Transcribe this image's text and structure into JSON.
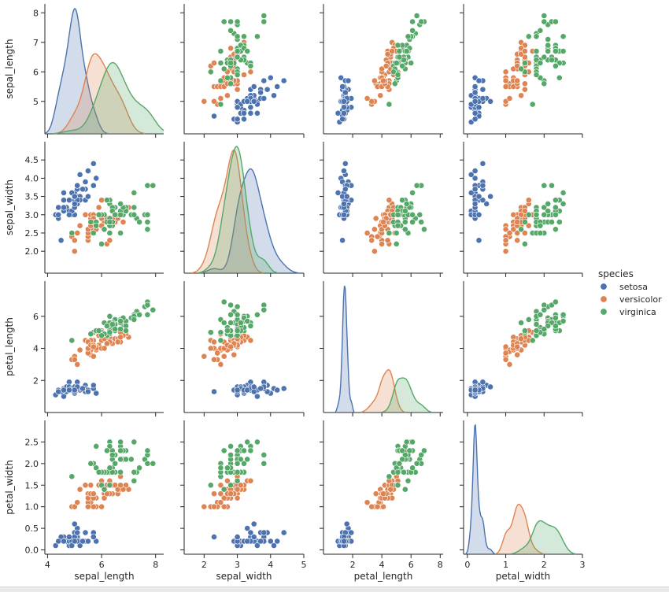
{
  "chart_data": {
    "type": "pairplot",
    "variables": [
      "sepal_length",
      "sepal_width",
      "petal_length",
      "petal_width"
    ],
    "axes": {
      "sepal_length": {
        "lim": [
          3.9,
          8.3
        ],
        "ticks": [
          "4",
          "6",
          "8"
        ],
        "row_ticks": [
          "5",
          "6",
          "7",
          "8"
        ]
      },
      "sepal_width": {
        "lim": [
          1.4,
          5.0
        ],
        "ticks": [
          "2",
          "3",
          "4",
          "5"
        ],
        "row_ticks": [
          "2.0",
          "2.5",
          "3.0",
          "3.5",
          "4.0",
          "4.5"
        ]
      },
      "petal_length": {
        "lim": [
          0.0,
          8.2
        ],
        "ticks": [
          "2",
          "4",
          "6",
          "8"
        ],
        "row_ticks": [
          "2",
          "4",
          "6"
        ]
      },
      "petal_width": {
        "lim": [
          -0.1,
          3.0
        ],
        "ticks": [
          "0",
          "1",
          "2",
          "3"
        ],
        "row_ticks": [
          "0.0",
          "0.5",
          "1.0",
          "1.5",
          "2.0",
          "2.5"
        ]
      }
    },
    "diag_kind": "kde",
    "legend": {
      "title": "species",
      "position": "right",
      "entries": [
        "setosa",
        "versicolor",
        "virginica"
      ]
    },
    "colors": {
      "setosa": "#4c72b0",
      "versicolor": "#dd8452",
      "virginica": "#55a868"
    },
    "series": [
      {
        "name": "setosa",
        "color": "#4c72b0",
        "sepal_length": [
          5.1,
          4.9,
          4.7,
          4.6,
          5.0,
          5.4,
          4.6,
          5.0,
          4.4,
          4.9,
          5.4,
          4.8,
          4.8,
          4.3,
          5.8,
          5.7,
          5.4,
          5.1,
          5.7,
          5.1,
          5.4,
          5.1,
          4.6,
          5.1,
          4.8,
          5.0,
          5.0,
          5.2,
          5.2,
          4.7,
          4.8,
          5.4,
          5.2,
          5.5,
          4.9,
          5.0,
          5.5,
          4.9,
          4.4,
          5.1,
          5.0,
          4.5,
          4.4,
          5.0,
          5.1,
          4.8,
          5.1,
          4.6,
          5.3,
          5.0
        ],
        "sepal_width": [
          3.5,
          3.0,
          3.2,
          3.1,
          3.6,
          3.9,
          3.4,
          3.4,
          2.9,
          3.1,
          3.7,
          3.4,
          3.0,
          3.0,
          4.0,
          4.4,
          3.9,
          3.5,
          3.8,
          3.8,
          3.4,
          3.7,
          3.6,
          3.3,
          3.4,
          3.0,
          3.4,
          3.5,
          3.4,
          3.2,
          3.1,
          3.4,
          4.1,
          4.2,
          3.1,
          3.2,
          3.5,
          3.6,
          3.0,
          3.4,
          3.5,
          2.3,
          3.2,
          3.5,
          3.8,
          3.0,
          3.8,
          3.2,
          3.7,
          3.3
        ],
        "petal_length": [
          1.4,
          1.4,
          1.3,
          1.5,
          1.4,
          1.7,
          1.4,
          1.5,
          1.4,
          1.5,
          1.5,
          1.6,
          1.4,
          1.1,
          1.2,
          1.5,
          1.3,
          1.4,
          1.7,
          1.5,
          1.7,
          1.5,
          1.0,
          1.7,
          1.9,
          1.6,
          1.6,
          1.5,
          1.4,
          1.6,
          1.6,
          1.5,
          1.5,
          1.4,
          1.5,
          1.2,
          1.3,
          1.4,
          1.3,
          1.5,
          1.3,
          1.3,
          1.3,
          1.6,
          1.9,
          1.4,
          1.6,
          1.4,
          1.5,
          1.4
        ],
        "petal_width": [
          0.2,
          0.2,
          0.2,
          0.2,
          0.2,
          0.4,
          0.3,
          0.2,
          0.2,
          0.1,
          0.2,
          0.2,
          0.1,
          0.1,
          0.2,
          0.4,
          0.4,
          0.3,
          0.3,
          0.3,
          0.2,
          0.4,
          0.2,
          0.5,
          0.2,
          0.2,
          0.4,
          0.2,
          0.2,
          0.2,
          0.2,
          0.4,
          0.1,
          0.2,
          0.2,
          0.2,
          0.2,
          0.1,
          0.2,
          0.2,
          0.3,
          0.3,
          0.2,
          0.6,
          0.4,
          0.3,
          0.2,
          0.2,
          0.2,
          0.2
        ]
      },
      {
        "name": "versicolor",
        "color": "#dd8452",
        "sepal_length": [
          7.0,
          6.4,
          6.9,
          5.5,
          6.5,
          5.7,
          6.3,
          4.9,
          6.6,
          5.2,
          5.0,
          5.9,
          6.0,
          6.1,
          5.6,
          6.7,
          5.6,
          5.8,
          6.2,
          5.6,
          5.9,
          6.1,
          6.3,
          6.1,
          6.4,
          6.6,
          6.8,
          6.7,
          6.0,
          5.7,
          5.5,
          5.5,
          5.8,
          6.0,
          5.4,
          6.0,
          6.7,
          6.3,
          5.6,
          5.5,
          5.5,
          6.1,
          5.8,
          5.0,
          5.6,
          5.7,
          5.7,
          6.2,
          5.1,
          5.7
        ],
        "sepal_width": [
          3.2,
          3.2,
          3.1,
          2.3,
          2.8,
          2.8,
          3.3,
          2.4,
          2.9,
          2.7,
          2.0,
          3.0,
          2.2,
          2.9,
          2.9,
          3.1,
          3.0,
          2.7,
          2.2,
          2.5,
          3.2,
          2.8,
          2.5,
          2.8,
          2.9,
          3.0,
          2.8,
          3.0,
          2.9,
          2.6,
          2.4,
          2.4,
          2.7,
          2.7,
          3.0,
          3.4,
          3.1,
          2.3,
          3.0,
          2.5,
          2.6,
          3.0,
          2.6,
          2.3,
          2.7,
          3.0,
          2.9,
          2.9,
          2.5,
          2.8
        ],
        "petal_length": [
          4.7,
          4.5,
          4.9,
          4.0,
          4.6,
          4.5,
          4.7,
          3.3,
          4.6,
          3.9,
          3.5,
          4.2,
          4.0,
          4.7,
          3.6,
          4.4,
          4.5,
          4.1,
          4.5,
          3.9,
          4.8,
          4.0,
          4.9,
          4.7,
          4.3,
          4.4,
          4.8,
          5.0,
          4.5,
          3.5,
          3.8,
          3.7,
          3.9,
          5.1,
          4.5,
          4.5,
          4.7,
          4.4,
          4.1,
          4.0,
          4.4,
          4.6,
          4.0,
          3.3,
          4.2,
          4.2,
          4.2,
          4.3,
          3.0,
          4.1
        ],
        "petal_width": [
          1.4,
          1.5,
          1.5,
          1.3,
          1.5,
          1.3,
          1.6,
          1.0,
          1.3,
          1.4,
          1.0,
          1.5,
          1.0,
          1.4,
          1.3,
          1.4,
          1.5,
          1.0,
          1.5,
          1.1,
          1.8,
          1.3,
          1.5,
          1.2,
          1.3,
          1.4,
          1.4,
          1.7,
          1.5,
          1.0,
          1.1,
          1.0,
          1.2,
          1.6,
          1.5,
          1.6,
          1.5,
          1.3,
          1.3,
          1.3,
          1.2,
          1.4,
          1.2,
          1.0,
          1.3,
          1.2,
          1.3,
          1.3,
          1.1,
          1.3
        ]
      },
      {
        "name": "virginica",
        "color": "#55a868",
        "sepal_length": [
          6.3,
          5.8,
          7.1,
          6.3,
          6.5,
          7.6,
          4.9,
          7.3,
          6.7,
          7.2,
          6.5,
          6.4,
          6.8,
          5.7,
          5.8,
          6.4,
          6.5,
          7.7,
          7.7,
          6.0,
          6.9,
          5.6,
          7.7,
          6.3,
          6.7,
          7.2,
          6.2,
          6.1,
          6.4,
          7.2,
          7.4,
          7.9,
          6.4,
          6.3,
          6.1,
          7.7,
          6.3,
          6.4,
          6.0,
          6.9,
          6.7,
          6.9,
          5.8,
          6.8,
          6.7,
          6.7,
          6.3,
          6.5,
          6.2,
          5.9
        ],
        "sepal_width": [
          3.3,
          2.7,
          3.0,
          2.9,
          3.0,
          3.0,
          2.5,
          2.9,
          2.5,
          3.6,
          3.2,
          2.7,
          3.0,
          2.5,
          2.8,
          3.2,
          3.0,
          3.8,
          2.6,
          2.2,
          3.2,
          2.8,
          2.8,
          2.7,
          3.3,
          3.2,
          2.8,
          3.0,
          2.8,
          3.0,
          2.8,
          3.8,
          2.8,
          2.8,
          2.6,
          3.0,
          3.4,
          3.1,
          3.0,
          3.1,
          3.1,
          3.1,
          2.7,
          3.2,
          3.3,
          3.0,
          2.5,
          3.0,
          3.4,
          3.0
        ],
        "petal_length": [
          6.0,
          5.1,
          5.9,
          5.6,
          5.8,
          6.6,
          4.5,
          6.3,
          5.8,
          6.1,
          5.1,
          5.3,
          5.5,
          5.0,
          5.1,
          5.3,
          5.5,
          6.7,
          6.9,
          5.0,
          5.7,
          4.9,
          6.7,
          4.9,
          5.7,
          6.0,
          4.8,
          4.9,
          5.6,
          5.8,
          6.1,
          6.4,
          5.6,
          5.1,
          5.6,
          6.1,
          5.6,
          5.5,
          4.8,
          5.4,
          5.6,
          5.1,
          5.1,
          5.9,
          5.7,
          5.2,
          5.0,
          5.2,
          5.4,
          5.1
        ],
        "petal_width": [
          2.5,
          1.9,
          2.1,
          1.8,
          2.2,
          2.1,
          1.7,
          1.8,
          1.8,
          2.5,
          2.0,
          1.9,
          2.1,
          2.0,
          2.4,
          2.3,
          1.8,
          2.2,
          2.3,
          1.5,
          2.3,
          2.0,
          2.0,
          1.8,
          2.1,
          1.8,
          1.8,
          1.8,
          2.1,
          1.6,
          1.9,
          2.0,
          2.2,
          1.5,
          1.4,
          2.3,
          2.4,
          1.8,
          1.8,
          2.1,
          2.4,
          2.3,
          1.9,
          2.3,
          2.5,
          2.3,
          1.9,
          2.0,
          2.3,
          1.8
        ]
      }
    ]
  }
}
